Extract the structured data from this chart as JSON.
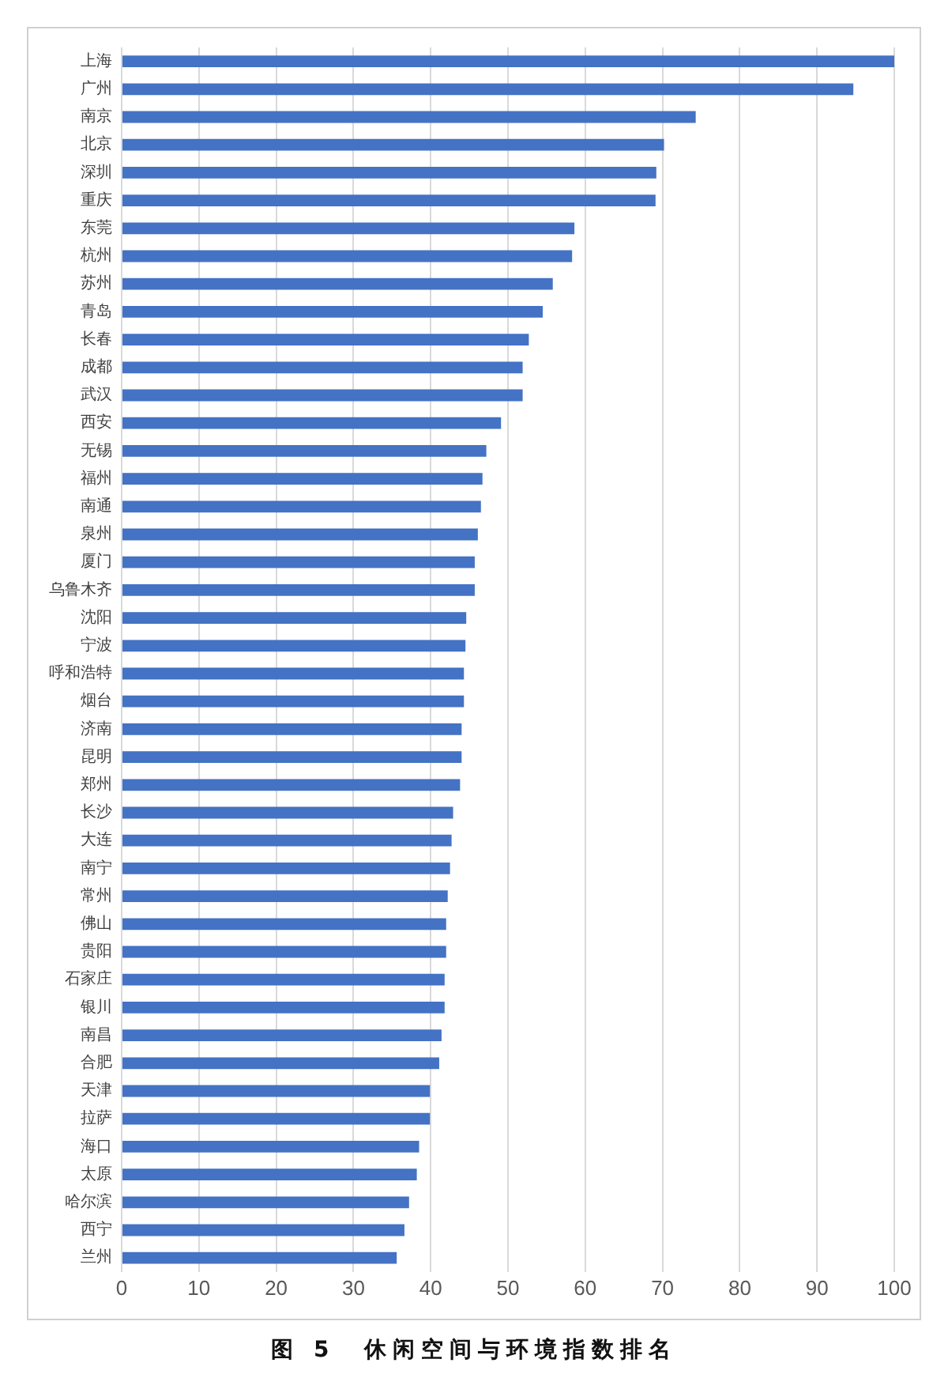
{
  "chart_data": {
    "type": "bar",
    "orientation": "horizontal",
    "title": "图 5　休闲空间与环境指数排名",
    "categories": [
      "上海",
      "广州",
      "南京",
      "北京",
      "深圳",
      "重庆",
      "东莞",
      "杭州",
      "苏州",
      "青岛",
      "长春",
      "成都",
      "武汉",
      "西安",
      "无锡",
      "福州",
      "南通",
      "泉州",
      "厦门",
      "乌鲁木齐",
      "沈阳",
      "宁波",
      "呼和浩特",
      "烟台",
      "济南",
      "昆明",
      "郑州",
      "长沙",
      "大连",
      "南宁",
      "常州",
      "佛山",
      "贵阳",
      "石家庄",
      "银川",
      "南昌",
      "合肥",
      "天津",
      "拉萨",
      "海口",
      "太原",
      "哈尔滨",
      "西宁",
      "兰州"
    ],
    "values": [
      100,
      94.7,
      74.3,
      70.2,
      69.2,
      69.1,
      58.6,
      58.3,
      55.8,
      54.5,
      52.7,
      51.9,
      51.9,
      49.1,
      47.2,
      46.7,
      46.5,
      46.1,
      45.7,
      45.7,
      44.6,
      44.5,
      44.3,
      44.3,
      44.0,
      44.0,
      43.8,
      42.9,
      42.7,
      42.5,
      42.2,
      42.0,
      42.0,
      41.8,
      41.8,
      41.4,
      41.1,
      39.9,
      39.9,
      38.5,
      38.2,
      37.2,
      36.6,
      35.6
    ],
    "color": "#4472c4",
    "xlim": [
      0,
      100
    ],
    "xticks": [
      0,
      10,
      20,
      30,
      40,
      50,
      60,
      70,
      80,
      90,
      100
    ],
    "grid": "x",
    "legend": false
  }
}
